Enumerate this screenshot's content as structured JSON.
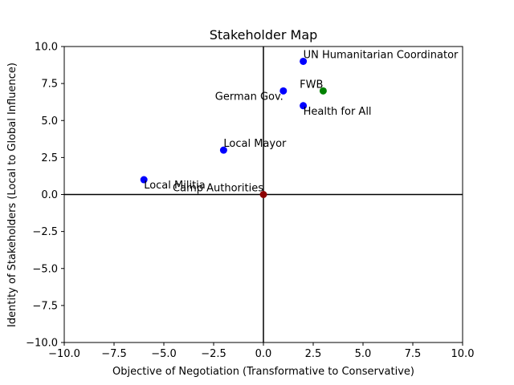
{
  "chart_data": {
    "type": "scatter",
    "title": "Stakeholder Map",
    "xlabel": "Objective of Negotiation (Transformative to Conservative)",
    "ylabel": "Identity of Stakeholders (Local to Global Influence)",
    "xlim": [
      -10,
      10
    ],
    "ylim": [
      -10,
      10
    ],
    "xticks": [
      -10,
      -7.5,
      -5,
      -2.5,
      0,
      2.5,
      5,
      7.5,
      10
    ],
    "yticks": [
      -10,
      -7.5,
      -5,
      -2.5,
      0,
      2.5,
      5,
      7.5,
      10
    ],
    "xtick_labels": [
      "−10.0",
      "−7.5",
      "−5.0",
      "−2.5",
      "0.0",
      "2.5",
      "5.0",
      "7.5",
      "10.0"
    ],
    "ytick_labels": [
      "−10.0",
      "−7.5",
      "−5.0",
      "−2.5",
      "0.0",
      "2.5",
      "5.0",
      "7.5",
      "10.0"
    ],
    "grid": false,
    "points": [
      {
        "label": "UN Humanitarian Coordinator",
        "x": 2,
        "y": 9,
        "color": "#0000ff",
        "label_pos": "above-right"
      },
      {
        "label": "FWB",
        "x": 3,
        "y": 7,
        "color": "#008000",
        "label_pos": "above-left"
      },
      {
        "label": "German Gov.",
        "x": 1,
        "y": 7,
        "color": "#0000ff",
        "label_pos": "below-left"
      },
      {
        "label": "Health for All",
        "x": 2,
        "y": 6,
        "color": "#0000ff",
        "label_pos": "below-right"
      },
      {
        "label": "Local Mayor",
        "x": -2,
        "y": 3,
        "color": "#0000ff",
        "label_pos": "above-right"
      },
      {
        "label": "Local Militia",
        "x": -6,
        "y": 1,
        "color": "#0000ff",
        "label_pos": "below-right"
      },
      {
        "label": "Camp Authorities",
        "x": 0,
        "y": 0,
        "color": "#8b0000",
        "label_pos": "above-left"
      }
    ]
  }
}
